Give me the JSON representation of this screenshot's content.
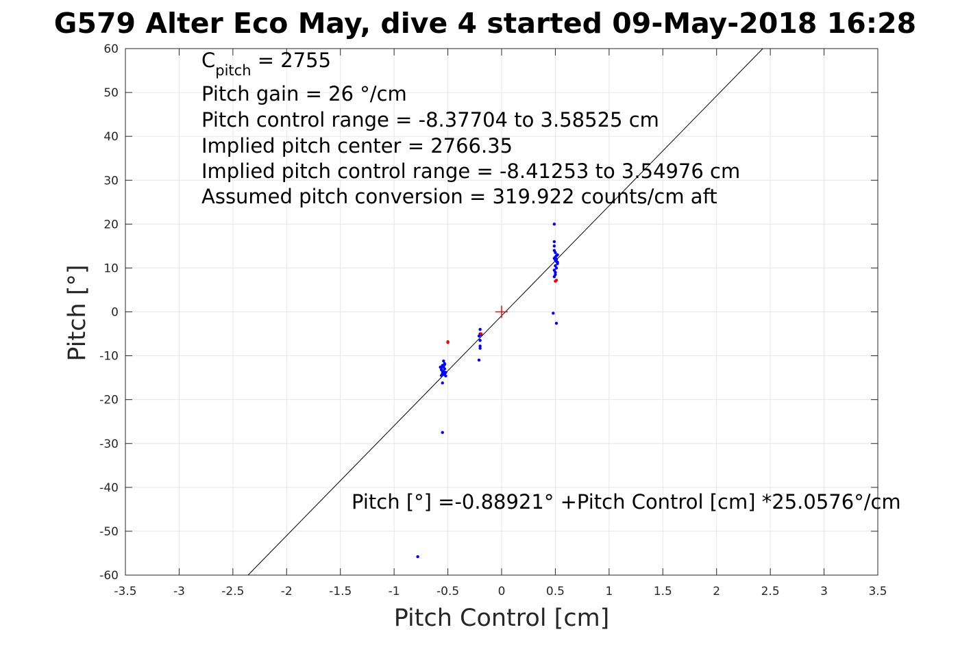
{
  "chart_data": {
    "type": "scatter",
    "title": "G579 Alter Eco May, dive 4 started 09-May-2018 16:28",
    "xlabel": "Pitch Control [cm]",
    "ylabel": "Pitch [°]",
    "xlim": [
      -3.5,
      3.5
    ],
    "ylim": [
      -60,
      60
    ],
    "xticks": [
      -3.5,
      -3,
      -2.5,
      -2,
      -1.5,
      -1,
      -0.5,
      0,
      0.5,
      1,
      1.5,
      2,
      2.5,
      3,
      3.5
    ],
    "xtick_labels": [
      "-3.5",
      "-3",
      "-2.5",
      "-2",
      "-1.5",
      "-1",
      "-0.5",
      "0",
      "0.5",
      "1",
      "1.5",
      "2",
      "2.5",
      "3",
      "3.5"
    ],
    "yticks": [
      -60,
      -50,
      -40,
      -30,
      -20,
      -10,
      0,
      10,
      20,
      30,
      40,
      50,
      60
    ],
    "ytick_labels": [
      "-60",
      "-50",
      "-40",
      "-30",
      "-20",
      "-10",
      "0",
      "10",
      "20",
      "30",
      "40",
      "50",
      "60"
    ],
    "grid": true,
    "colors": {
      "series_blue": "#0000ff",
      "series_red": "#ff0000",
      "fit_line": "#000000",
      "grid": "#e6e6e6",
      "axes": "#262626"
    },
    "series": [
      {
        "color": "#0000ff",
        "points": [
          [
            -0.55,
            -12.2
          ],
          [
            -0.56,
            -12.8
          ],
          [
            -0.55,
            -13.5
          ],
          [
            -0.54,
            -14.2
          ],
          [
            -0.56,
            -14.5
          ],
          [
            -0.54,
            -11.2
          ],
          [
            -0.53,
            -12.0
          ],
          [
            -0.53,
            -13.0
          ],
          [
            -0.52,
            -13.8
          ],
          [
            -0.52,
            -14.6
          ],
          [
            -0.55,
            -14.0
          ],
          [
            -0.54,
            -12.5
          ],
          [
            -0.56,
            -13.2
          ],
          [
            -0.53,
            -11.8
          ],
          [
            -0.55,
            -16.2
          ],
          [
            -0.57,
            -12.6
          ],
          [
            -0.53,
            -14.3
          ],
          [
            -0.54,
            -13.6
          ],
          [
            -0.55,
            -27.5
          ],
          [
            -0.2,
            -4.0
          ],
          [
            -0.2,
            -5.0
          ],
          [
            -0.21,
            -5.5
          ],
          [
            -0.2,
            -6.5
          ],
          [
            -0.2,
            -7.8
          ],
          [
            -0.2,
            -8.3
          ],
          [
            -0.21,
            -11.0
          ],
          [
            -0.19,
            -5.2
          ],
          [
            0.49,
            20.0
          ],
          [
            0.49,
            16.0
          ],
          [
            0.49,
            15.0
          ],
          [
            0.49,
            14.0
          ],
          [
            0.5,
            13.5
          ],
          [
            0.5,
            12.5
          ],
          [
            0.51,
            12.0
          ],
          [
            0.51,
            11.5
          ],
          [
            0.52,
            11.0
          ],
          [
            0.5,
            10.5
          ],
          [
            0.51,
            10.0
          ],
          [
            0.49,
            9.5
          ],
          [
            0.5,
            9.0
          ],
          [
            0.5,
            8.5
          ],
          [
            0.49,
            8.0
          ],
          [
            0.52,
            13.0
          ],
          [
            0.51,
            12.8
          ],
          [
            0.5,
            11.8
          ],
          [
            0.49,
            12.2
          ],
          [
            0.52,
            11.3
          ],
          [
            0.48,
            -0.3
          ],
          [
            0.51,
            -2.6
          ],
          [
            -0.78,
            -55.8
          ]
        ]
      },
      {
        "color": "#ff0000",
        "points": [
          [
            -0.5,
            -7.0
          ],
          [
            -0.5,
            -6.8
          ],
          [
            -0.19,
            -5.0
          ],
          [
            0.5,
            7.0
          ],
          [
            0.51,
            7.2
          ]
        ]
      }
    ],
    "fit_line": {
      "intercept": -0.88921,
      "slope": 25.0576
    },
    "center_marker": {
      "x": 0,
      "y": 0,
      "color": "#ff0000"
    },
    "annotations": {
      "c_pitch_main": "C",
      "c_pitch_sub": "pitch",
      "c_pitch_value": " = 2755",
      "pitch_gain": "Pitch gain = 26 °/cm",
      "control_range": "Pitch control range = -8.37704 to 3.58525 cm",
      "implied_center": "Implied pitch center = 2766.35",
      "implied_range": "Implied pitch control range = -8.41253 to 3.54976 cm",
      "conversion": "Assumed pitch conversion = 319.922 counts/cm aft",
      "fit_equation": "Pitch [°] =-0.88921° +Pitch Control [cm] *25.0576°/cm"
    }
  }
}
